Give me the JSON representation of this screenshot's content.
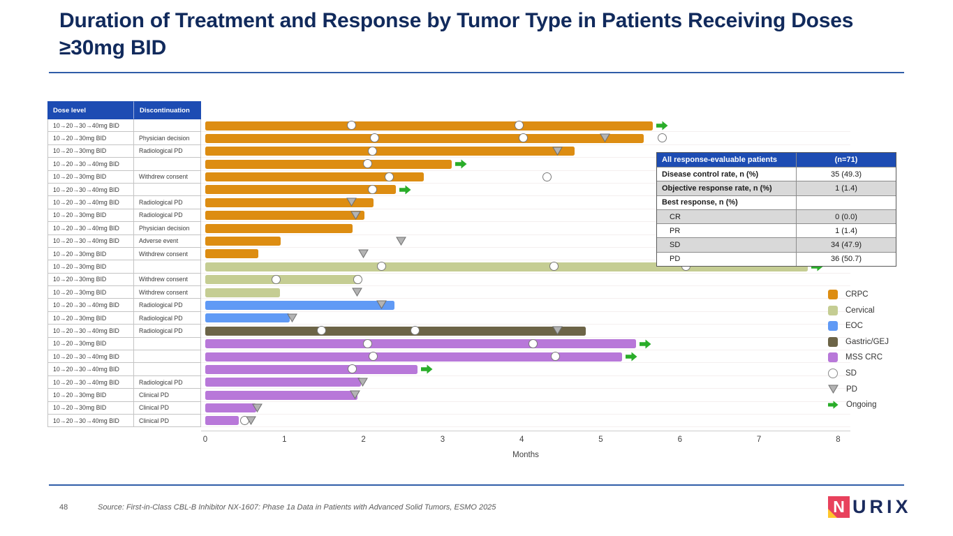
{
  "title": "Duration of Treatment and Response by Tumor Type in Patients Receiving Doses ≥30mg BID",
  "footer": {
    "page_number": "48",
    "source": "Source: First-in-Class CBL-B Inhibitor NX-1607: Phase 1a Data in Patients with Advanced Solid Tumors, ESMO 2025",
    "logo_text": "NURIX"
  },
  "summary_table": {
    "header": [
      "All response-evaluable patients",
      "(n=71)"
    ],
    "rows": [
      {
        "label": "Disease control rate, n (%)",
        "value": "35 (49.3)",
        "bold": true,
        "indent": false,
        "shaded": false
      },
      {
        "label": "Objective response rate, n (%)",
        "value": "1 (1.4)",
        "bold": true,
        "indent": false,
        "shaded": true
      },
      {
        "label": "Best response, n (%)",
        "value": "",
        "bold": true,
        "indent": false,
        "shaded": false
      },
      {
        "label": "CR",
        "value": "0 (0.0)",
        "bold": false,
        "indent": true,
        "shaded": true
      },
      {
        "label": "PR",
        "value": "1 (1.4)",
        "bold": false,
        "indent": true,
        "shaded": false
      },
      {
        "label": "SD",
        "value": "34 (47.9)",
        "bold": false,
        "indent": true,
        "shaded": true
      },
      {
        "label": "PD",
        "value": "36 (50.7)",
        "bold": false,
        "indent": true,
        "shaded": false
      }
    ]
  },
  "legend": {
    "items": [
      {
        "label": "CRPC",
        "swatch": "square",
        "color": "#DD8D12"
      },
      {
        "label": "Cervical",
        "swatch": "square",
        "color": "#C5CD93"
      },
      {
        "label": "EOC",
        "swatch": "square",
        "color": "#609AF5"
      },
      {
        "label": "Gastric/GEJ",
        "swatch": "square",
        "color": "#6C6447"
      },
      {
        "label": "MSS CRC",
        "swatch": "square",
        "color": "#B878D9"
      },
      {
        "label": "SD",
        "swatch": "circle"
      },
      {
        "label": "PD",
        "swatch": "triangle"
      },
      {
        "label": "Ongoing",
        "swatch": "arrow"
      }
    ]
  },
  "chart_data": {
    "type": "bar",
    "variant": "swimmer-plot",
    "title": "Duration of Treatment and Response by Tumor Type in Patients Receiving Doses ≥30mg BID",
    "xlabel": "Months",
    "xlim": [
      0,
      8
    ],
    "xticks": [
      0,
      1,
      2,
      3,
      4,
      5,
      6,
      7,
      8
    ],
    "table_headers": [
      "Dose level",
      "Discontinuation"
    ],
    "tumor_colors": {
      "CRPC": "#DD8D12",
      "Cervical": "#C5CD93",
      "EOC": "#609AF5",
      "Gastric/GEJ": "#6C6447",
      "MSS CRC": "#B878D9"
    },
    "marker_colors": {
      "pd_fill": "#b3b3b3",
      "pd_stroke": "#6f6f6f",
      "ongoing_green": "#29AD29"
    },
    "rows": [
      {
        "dose": "10→20→30→40mg BID",
        "discontinuation": "",
        "tumor": "CRPC",
        "duration_months": 5.66,
        "ongoing": true,
        "markers": [
          {
            "type": "SD",
            "month": 1.85
          },
          {
            "type": "SD",
            "month": 3.97
          }
        ]
      },
      {
        "dose": "10→20→30mg BID",
        "discontinuation": "Physician decision",
        "tumor": "CRPC",
        "duration_months": 5.54,
        "ongoing": false,
        "markers": [
          {
            "type": "SD",
            "month": 2.14
          },
          {
            "type": "SD",
            "month": 4.02
          },
          {
            "type": "PD",
            "month": 5.05
          },
          {
            "type": "SD",
            "month": 5.78
          }
        ]
      },
      {
        "dose": "10→20→30mg BID",
        "discontinuation": "Radiological PD",
        "tumor": "CRPC",
        "duration_months": 4.67,
        "ongoing": false,
        "markers": [
          {
            "type": "SD",
            "month": 2.11
          },
          {
            "type": "PD",
            "month": 4.45
          }
        ]
      },
      {
        "dose": "10→20→30→40mg BID",
        "discontinuation": "",
        "tumor": "CRPC",
        "duration_months": 3.12,
        "ongoing": true,
        "markers": [
          {
            "type": "SD",
            "month": 2.05
          }
        ]
      },
      {
        "dose": "10→20→30mg BID",
        "discontinuation": "Withdrew consent",
        "tumor": "CRPC",
        "duration_months": 2.76,
        "ongoing": false,
        "markers": [
          {
            "type": "SD",
            "month": 2.33
          },
          {
            "type": "SD",
            "month": 4.32
          }
        ]
      },
      {
        "dose": "10→20→30→40mg BID",
        "discontinuation": "",
        "tumor": "CRPC",
        "duration_months": 2.41,
        "ongoing": true,
        "markers": [
          {
            "type": "SD",
            "month": 2.11
          }
        ]
      },
      {
        "dose": "10→20→30→40mg BID",
        "discontinuation": "Radiological PD",
        "tumor": "CRPC",
        "duration_months": 2.13,
        "ongoing": false,
        "markers": [
          {
            "type": "PD",
            "month": 1.85
          }
        ]
      },
      {
        "dose": "10→20→30mg BID",
        "discontinuation": "Radiological PD",
        "tumor": "CRPC",
        "duration_months": 2.01,
        "ongoing": false,
        "markers": [
          {
            "type": "PD",
            "month": 1.9
          }
        ]
      },
      {
        "dose": "10→20→30→40mg BID",
        "discontinuation": "Physician decision",
        "tumor": "CRPC",
        "duration_months": 1.86,
        "ongoing": false,
        "markers": []
      },
      {
        "dose": "10→20→30→40mg BID",
        "discontinuation": "Adverse event",
        "tumor": "CRPC",
        "duration_months": 0.95,
        "ongoing": false,
        "markers": [
          {
            "type": "PD",
            "month": 2.48
          }
        ]
      },
      {
        "dose": "10→20→30mg BID",
        "discontinuation": "Withdrew consent",
        "tumor": "CRPC",
        "duration_months": 0.67,
        "ongoing": false,
        "markers": [
          {
            "type": "PD",
            "month": 2.0
          }
        ]
      },
      {
        "dose": "10→20→30mg BID",
        "discontinuation": "",
        "tumor": "Cervical",
        "duration_months": 7.62,
        "ongoing": true,
        "markers": [
          {
            "type": "SD",
            "month": 2.23
          },
          {
            "type": "SD",
            "month": 4.41
          },
          {
            "type": "SD",
            "month": 6.08
          }
        ]
      },
      {
        "dose": "10→20→30mg BID",
        "discontinuation": "Withdrew consent",
        "tumor": "Cervical",
        "duration_months": 1.97,
        "ongoing": false,
        "markers": [
          {
            "type": "SD",
            "month": 0.9
          },
          {
            "type": "SD",
            "month": 1.93
          }
        ]
      },
      {
        "dose": "10→20→30mg BID",
        "discontinuation": "Withdrew consent",
        "tumor": "Cervical",
        "duration_months": 0.94,
        "ongoing": false,
        "markers": [
          {
            "type": "PD",
            "month": 1.92
          }
        ]
      },
      {
        "dose": "10→20→30→40mg BID",
        "discontinuation": "Radiological PD",
        "tumor": "EOC",
        "duration_months": 2.39,
        "ongoing": false,
        "markers": [
          {
            "type": "PD",
            "month": 2.23
          }
        ]
      },
      {
        "dose": "10→20→30mg BID",
        "discontinuation": "Radiological PD",
        "tumor": "EOC",
        "duration_months": 1.07,
        "ongoing": false,
        "markers": [
          {
            "type": "PD",
            "month": 1.1
          }
        ]
      },
      {
        "dose": "10→20→30→40mg BID",
        "discontinuation": "Radiological PD",
        "tumor": "Gastric/GEJ",
        "duration_months": 4.81,
        "ongoing": false,
        "markers": [
          {
            "type": "SD",
            "month": 1.47
          },
          {
            "type": "SD",
            "month": 2.65
          },
          {
            "type": "PD",
            "month": 4.45
          }
        ]
      },
      {
        "dose": "10→20→30mg BID",
        "discontinuation": "",
        "tumor": "MSS CRC",
        "duration_months": 5.45,
        "ongoing": true,
        "markers": [
          {
            "type": "SD",
            "month": 2.05
          },
          {
            "type": "SD",
            "month": 4.14
          }
        ]
      },
      {
        "dose": "10→20→30→40mg BID",
        "discontinuation": "",
        "tumor": "MSS CRC",
        "duration_months": 5.27,
        "ongoing": true,
        "markers": [
          {
            "type": "SD",
            "month": 2.12
          },
          {
            "type": "SD",
            "month": 4.43
          }
        ]
      },
      {
        "dose": "10→20→30→40mg BID",
        "discontinuation": "",
        "tumor": "MSS CRC",
        "duration_months": 2.68,
        "ongoing": true,
        "markers": [
          {
            "type": "SD",
            "month": 1.86
          }
        ]
      },
      {
        "dose": "10→20→30→40mg BID",
        "discontinuation": "Radiological PD",
        "tumor": "MSS CRC",
        "duration_months": 1.97,
        "ongoing": false,
        "markers": [
          {
            "type": "PD",
            "month": 1.99
          }
        ]
      },
      {
        "dose": "10→20→30mg BID",
        "discontinuation": "Clinical PD",
        "tumor": "MSS CRC",
        "duration_months": 1.92,
        "ongoing": false,
        "markers": [
          {
            "type": "PD",
            "month": 1.89
          }
        ]
      },
      {
        "dose": "10→20→30mg BID",
        "discontinuation": "Clinical PD",
        "tumor": "MSS CRC",
        "duration_months": 0.64,
        "ongoing": false,
        "markers": [
          {
            "type": "PD",
            "month": 0.66
          }
        ]
      },
      {
        "dose": "10→20→30→40mg BID",
        "discontinuation": "Clinical PD",
        "tumor": "MSS CRC",
        "duration_months": 0.42,
        "ongoing": false,
        "markers": [
          {
            "type": "SD",
            "month": 0.5
          },
          {
            "type": "PD",
            "month": 0.58
          }
        ]
      }
    ]
  }
}
